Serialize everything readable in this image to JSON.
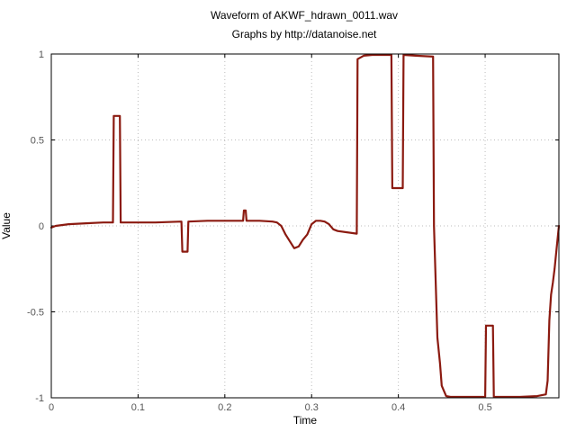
{
  "chart_data": {
    "type": "line",
    "title": "Waveform of AKWF_hdrawn_0011.wav",
    "subtitle": "Graphs by http://datanoise.net",
    "xlabel": "Time",
    "ylabel": "Value",
    "xlim": [
      0,
      0.585
    ],
    "ylim": [
      -1,
      1
    ],
    "xticks": [
      "0",
      "0.1",
      "0.2",
      "0.3",
      "0.4",
      "0.5"
    ],
    "yticks": [
      "1",
      "0.5",
      "0",
      "-0.5",
      "-1"
    ],
    "grid": true,
    "line_color": "#8b1a10",
    "series": [
      {
        "x": [
          0,
          0.005,
          0.02,
          0.04,
          0.06,
          0.071,
          0.072,
          0.079,
          0.08,
          0.1,
          0.12,
          0.15,
          0.151,
          0.157,
          0.158,
          0.18,
          0.2,
          0.221,
          0.222,
          0.224,
          0.225,
          0.24,
          0.255,
          0.26,
          0.265,
          0.27,
          0.275,
          0.28,
          0.285,
          0.29,
          0.295,
          0.3,
          0.305,
          0.31,
          0.315,
          0.32,
          0.325,
          0.33,
          0.352,
          0.353,
          0.36,
          0.37,
          0.38,
          0.392,
          0.393,
          0.405,
          0.406,
          0.42,
          0.44,
          0.441,
          0.445,
          0.448,
          0.45,
          0.455,
          0.46,
          0.48,
          0.5,
          0.501,
          0.509,
          0.51,
          0.52,
          0.54,
          0.56,
          0.57,
          0.572,
          0.574,
          0.576,
          0.578,
          0.58,
          0.582,
          0.585
        ],
        "y": [
          -0.01,
          0.0,
          0.01,
          0.015,
          0.02,
          0.02,
          0.64,
          0.64,
          0.02,
          0.02,
          0.02,
          0.025,
          -0.15,
          -0.15,
          0.025,
          0.03,
          0.03,
          0.03,
          0.09,
          0.09,
          0.03,
          0.03,
          0.025,
          0.02,
          0.0,
          -0.05,
          -0.09,
          -0.13,
          -0.12,
          -0.08,
          -0.05,
          0.01,
          0.03,
          0.03,
          0.025,
          0.01,
          -0.02,
          -0.03,
          -0.045,
          0.97,
          0.99,
          0.995,
          0.995,
          0.995,
          0.22,
          0.22,
          0.995,
          0.99,
          0.985,
          0.0,
          -0.65,
          -0.8,
          -0.93,
          -0.99,
          -0.995,
          -0.995,
          -0.995,
          -0.58,
          -0.58,
          -0.995,
          -0.995,
          -0.995,
          -0.99,
          -0.98,
          -0.9,
          -0.55,
          -0.4,
          -0.33,
          -0.25,
          -0.15,
          0.0
        ]
      }
    ]
  }
}
